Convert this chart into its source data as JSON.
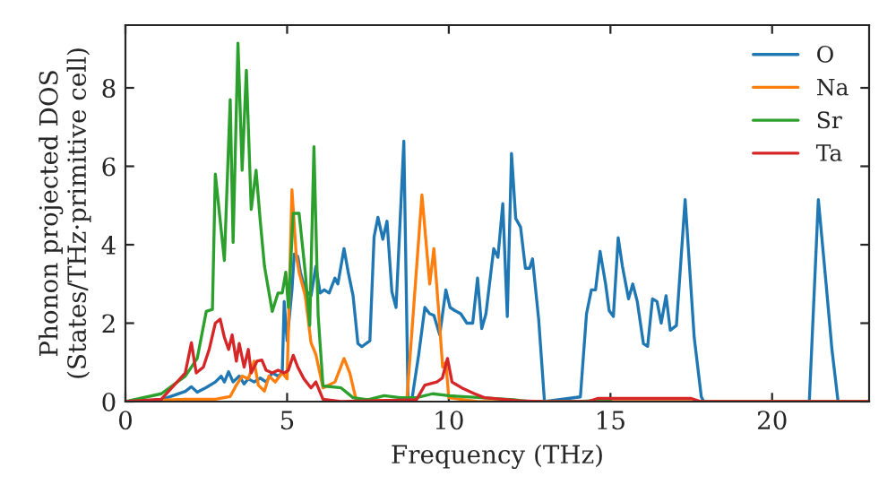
{
  "chart_data": {
    "type": "line",
    "xlabel": "Frequency (THz)",
    "ylabel": "Phonon projected DOS\n(States/THz·primitive cell)",
    "xlim": [
      0,
      23
    ],
    "ylim": [
      0,
      9.6
    ],
    "xticks": [
      0,
      5,
      10,
      15,
      20
    ],
    "yticks": [
      0,
      2,
      4,
      6,
      8
    ],
    "grid": false,
    "legend": "top right",
    "marker": "none",
    "line_style": "solid",
    "series": [
      {
        "name": "O",
        "color": "#1f77b4",
        "x": [
          0,
          1.11,
          1.85,
          2.04,
          2.22,
          2.5,
          2.78,
          2.96,
          3.06,
          3.19,
          3.33,
          3.52,
          3.67,
          3.8,
          3.98,
          4.17,
          4.35,
          4.54,
          4.72,
          4.85,
          4.91,
          5.0,
          5.15,
          5.22,
          5.33,
          5.41,
          5.56,
          5.74,
          5.89,
          6.02,
          6.15,
          6.3,
          6.48,
          6.57,
          6.76,
          6.89,
          7.04,
          7.19,
          7.31,
          7.56,
          7.69,
          7.81,
          7.96,
          8.09,
          8.24,
          8.37,
          8.61,
          8.74,
          8.85,
          9.07,
          9.26,
          9.41,
          9.54,
          9.72,
          9.91,
          10.04,
          10.19,
          10.37,
          10.56,
          10.74,
          10.89,
          11.02,
          11.15,
          11.39,
          11.52,
          11.67,
          11.81,
          11.94,
          12.07,
          12.22,
          12.37,
          12.5,
          12.59,
          12.78,
          12.96,
          14.07,
          14.26,
          14.41,
          14.54,
          14.68,
          14.85,
          14.96,
          15.09,
          15.24,
          15.37,
          15.56,
          15.69,
          15.83,
          16.02,
          16.15,
          16.3,
          16.44,
          16.57,
          16.72,
          16.85,
          17.04,
          17.31,
          17.59,
          17.81,
          17.89,
          21.15,
          21.43,
          21.67,
          21.85,
          22.04,
          23
        ],
        "values": [
          0,
          0.05,
          0.26,
          0.38,
          0.24,
          0.36,
          0.5,
          0.65,
          0.5,
          0.76,
          0.5,
          0.65,
          0.45,
          0.58,
          0.5,
          0.6,
          0.5,
          0.73,
          0.65,
          0.73,
          2.55,
          1.55,
          2.85,
          3.76,
          3.7,
          3.3,
          2.85,
          2.7,
          3.45,
          2.77,
          2.85,
          2.77,
          3.15,
          3.0,
          3.9,
          3.3,
          2.7,
          1.48,
          1.4,
          1.55,
          4.2,
          4.7,
          4.14,
          4.6,
          2.8,
          2.4,
          6.64,
          0.12,
          0,
          1.2,
          2.4,
          2.24,
          2.2,
          1.7,
          2.85,
          2.4,
          2.32,
          2.24,
          2.0,
          2.0,
          3.15,
          1.86,
          2.24,
          3.9,
          3.68,
          5.05,
          2.17,
          6.33,
          4.67,
          4.45,
          3.4,
          3.4,
          3.64,
          2.1,
          0,
          0.12,
          2.24,
          2.85,
          2.85,
          3.83,
          3.0,
          2.32,
          2.17,
          4.18,
          3.45,
          2.62,
          3.0,
          2.55,
          1.48,
          1.41,
          2.62,
          2.55,
          2.0,
          2.7,
          1.82,
          1.94,
          5.15,
          1.64,
          0.12,
          0,
          0,
          5.15,
          3.0,
          1.33,
          0,
          0
        ]
      },
      {
        "name": "Na",
        "color": "#ff7f0e",
        "x": [
          0,
          1.85,
          2.78,
          3.24,
          3.43,
          3.61,
          3.8,
          3.98,
          4.11,
          4.3,
          4.44,
          4.63,
          4.85,
          5.0,
          5.15,
          5.28,
          5.37,
          5.56,
          5.74,
          5.89,
          6.11,
          6.48,
          6.76,
          6.94,
          7.13,
          8.7,
          9.17,
          9.41,
          9.54,
          9.67,
          9.81,
          9.91,
          10.0,
          10.9,
          23
        ],
        "values": [
          0,
          0.06,
          0.06,
          0.13,
          0.42,
          0.65,
          0.58,
          1.03,
          0.42,
          0.27,
          0.65,
          0.5,
          0.73,
          0.58,
          5.4,
          3.76,
          3.3,
          2.7,
          1.5,
          1.2,
          0.35,
          0.5,
          1.1,
          0.73,
          0.06,
          0,
          5.27,
          3.0,
          3.9,
          2.5,
          0.88,
          1.0,
          0.1,
          0,
          0
        ]
      },
      {
        "name": "Sr",
        "color": "#2ca02c",
        "x": [
          0,
          1.11,
          1.85,
          2.22,
          2.5,
          2.69,
          2.78,
          3.06,
          3.24,
          3.33,
          3.48,
          3.61,
          3.74,
          3.89,
          4.04,
          4.17,
          4.3,
          4.54,
          4.72,
          4.85,
          4.96,
          5.04,
          5.19,
          5.37,
          5.56,
          5.7,
          5.83,
          5.96,
          6.11,
          6.67,
          7.04,
          7.5,
          8,
          8.5,
          9,
          9.5,
          10,
          11,
          12,
          12.5,
          14,
          15
        ],
        "values": [
          0,
          0.2,
          0.65,
          1.1,
          2.3,
          2.35,
          5.8,
          3.6,
          7.7,
          4.06,
          9.14,
          5.9,
          8.45,
          4.9,
          5.9,
          4.6,
          3.45,
          2.3,
          2.77,
          2.77,
          3.3,
          2.4,
          4.8,
          4.8,
          3.3,
          1.94,
          6.5,
          2.2,
          0.4,
          0.35,
          0.1,
          0.05,
          0.15,
          0.1,
          0.1,
          0.2,
          0.15,
          0.1,
          0.05,
          0,
          0,
          0.05
        ]
      },
      {
        "name": "Ta",
        "color": "#d62728",
        "x": [
          0,
          1.11,
          1.85,
          2.04,
          2.19,
          2.41,
          2.59,
          2.78,
          2.93,
          3.06,
          3.19,
          3.3,
          3.43,
          3.52,
          3.67,
          3.8,
          3.89,
          4.07,
          4.22,
          4.35,
          4.54,
          4.72,
          4.91,
          5.04,
          5.19,
          5.33,
          5.52,
          5.74,
          5.89,
          6.11,
          6.67,
          9.0,
          9.26,
          9.63,
          9.8,
          9.96,
          10.1,
          10.4,
          10.8,
          11.1,
          12.2,
          12.9,
          14.3,
          14.6,
          17.5,
          17.8,
          23
        ],
        "values": [
          0,
          0.06,
          0.73,
          1.5,
          0.73,
          0.88,
          1.33,
          2.0,
          2.1,
          1.64,
          1.33,
          1.7,
          1.03,
          1.48,
          0.88,
          1.33,
          0.73,
          1.03,
          1.06,
          0.8,
          0.73,
          0.8,
          0.73,
          0.8,
          1.18,
          0.88,
          0.58,
          0.35,
          0.5,
          0.06,
          0,
          0.05,
          0.42,
          0.5,
          0.6,
          1.1,
          0.5,
          0.35,
          0.2,
          0.1,
          0.02,
          0,
          0,
          0.08,
          0.08,
          0,
          0
        ]
      }
    ]
  }
}
